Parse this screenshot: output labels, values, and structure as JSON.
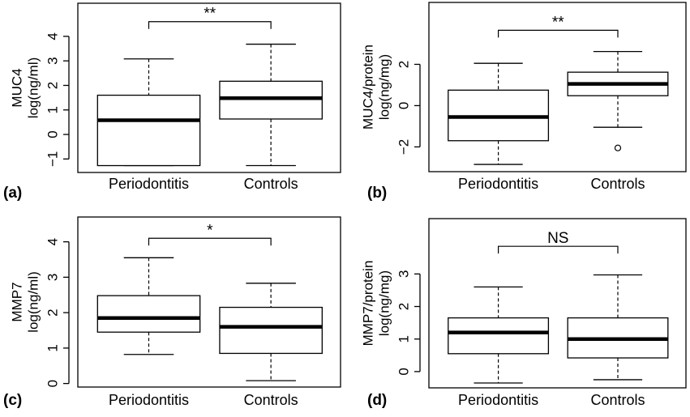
{
  "chart_data": [
    {
      "type": "boxplot",
      "panel_label": "(a)",
      "ylabel_lines": [
        "MUC4",
        "log(ng/ml)"
      ],
      "categories": [
        "Periodontitis",
        "Controls"
      ],
      "yticks": [
        -1,
        0,
        1,
        2,
        3,
        4
      ],
      "ylim": [
        -1.55,
        5.35
      ],
      "boxes": [
        {
          "whisker_low": -1.27,
          "q1": -1.27,
          "median": 0.58,
          "q3": 1.6,
          "whisker_high": 3.08,
          "outliers": []
        },
        {
          "whisker_low": -1.27,
          "q1": 0.63,
          "median": 1.48,
          "q3": 2.17,
          "whisker_high": 3.68,
          "outliers": []
        }
      ],
      "significance": "**",
      "bracket_y": 4.6
    },
    {
      "type": "boxplot",
      "panel_label": "(b)",
      "ylabel_lines": [
        "MUC4/protein",
        "log(ng/mg)"
      ],
      "categories": [
        "Periodontitis",
        "Controls"
      ],
      "yticks": [
        -2,
        0,
        2
      ],
      "ylim": [
        -3.2,
        5.0
      ],
      "boxes": [
        {
          "whisker_low": -2.85,
          "q1": -1.7,
          "median": -0.55,
          "q3": 0.75,
          "whisker_high": 2.05,
          "outliers": []
        },
        {
          "whisker_low": -1.05,
          "q1": 0.48,
          "median": 1.05,
          "q3": 1.62,
          "whisker_high": 2.62,
          "outliers": [
            -2.05
          ]
        }
      ],
      "significance": "**",
      "bracket_y": 3.65
    },
    {
      "type": "boxplot",
      "panel_label": "(c)",
      "ylabel_lines": [
        "MMP7",
        "log(ng/ml)"
      ],
      "categories": [
        "Periodontitis",
        "Controls"
      ],
      "yticks": [
        0,
        1,
        2,
        3,
        4
      ],
      "ylim": [
        -0.1,
        4.7
      ],
      "boxes": [
        {
          "whisker_low": 0.82,
          "q1": 1.45,
          "median": 1.85,
          "q3": 2.48,
          "whisker_high": 3.55,
          "outliers": []
        },
        {
          "whisker_low": 0.08,
          "q1": 0.85,
          "median": 1.6,
          "q3": 2.15,
          "whisker_high": 2.83,
          "outliers": []
        }
      ],
      "significance": "*",
      "bracket_y": 4.1
    },
    {
      "type": "boxplot",
      "panel_label": "(d)",
      "ylabel_lines": [
        "MMP7/protein",
        "log(ng/mg)"
      ],
      "categories": [
        "Periodontitis",
        "Controls"
      ],
      "yticks": [
        0,
        1,
        2,
        3
      ],
      "ylim": [
        -0.5,
        4.7
      ],
      "boxes": [
        {
          "whisker_low": -0.35,
          "q1": 0.55,
          "median": 1.2,
          "q3": 1.65,
          "whisker_high": 2.6,
          "outliers": []
        },
        {
          "whisker_low": -0.25,
          "q1": 0.42,
          "median": 1.0,
          "q3": 1.65,
          "whisker_high": 2.97,
          "outliers": []
        }
      ],
      "significance": "NS",
      "bracket_y": 3.85
    }
  ]
}
